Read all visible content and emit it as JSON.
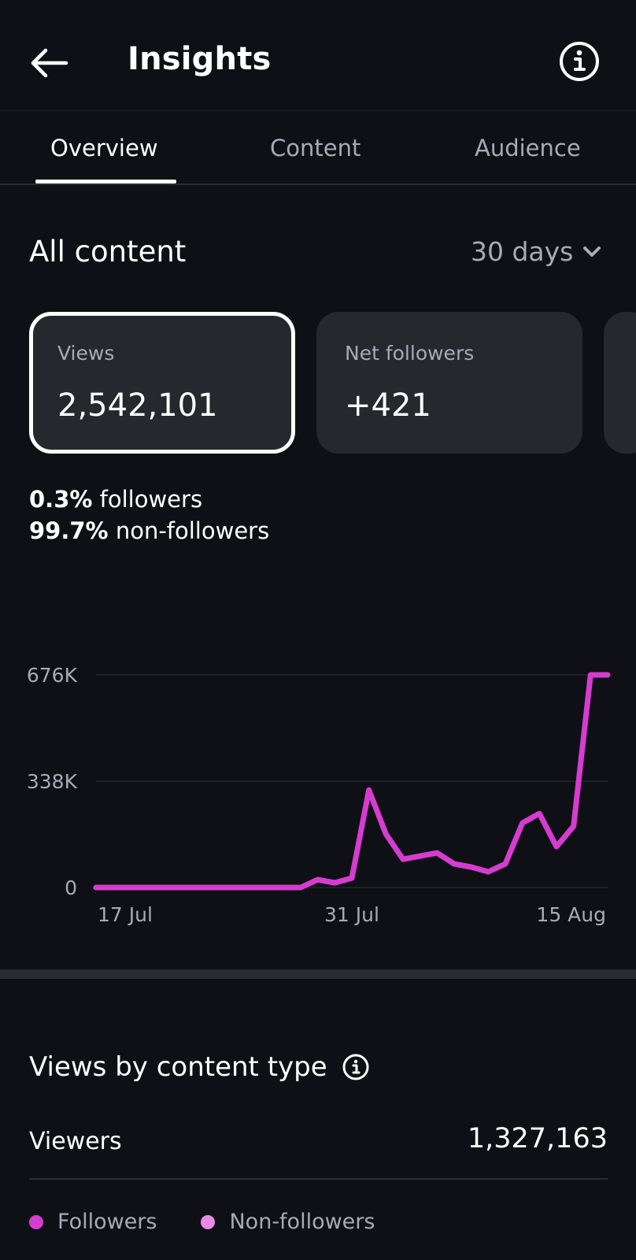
{
  "header": {
    "title": "Insights",
    "back_icon": "arrow-left-icon",
    "info_icon": "info-circle-icon"
  },
  "tabs": [
    {
      "label": "Overview",
      "active": true
    },
    {
      "label": "Content",
      "active": false
    },
    {
      "label": "Audience",
      "active": false
    }
  ],
  "section": {
    "title": "All content",
    "range_label": "30 days"
  },
  "cards": [
    {
      "label": "Views",
      "value": "2,542,101",
      "selected": true
    },
    {
      "label": "Net followers",
      "value": "+421",
      "selected": false
    }
  ],
  "split": {
    "followers_pct": "0.3%",
    "followers_label": "followers",
    "nonfollowers_pct": "99.7%",
    "nonfollowers_label": "non-followers"
  },
  "chart_data": {
    "type": "line",
    "y_ticks": [
      "676K",
      "338K",
      "0"
    ],
    "x_ticks": [
      "17 Jul",
      "31 Jul",
      "15 Aug"
    ],
    "ylim": [
      0,
      676000
    ],
    "series": [
      {
        "color": "#d63ccf",
        "x": [
          "16 Jul",
          "17 Jul",
          "18 Jul",
          "19 Jul",
          "20 Jul",
          "21 Jul",
          "22 Jul",
          "23 Jul",
          "24 Jul",
          "25 Jul",
          "26 Jul",
          "27 Jul",
          "28 Jul",
          "29 Jul",
          "30 Jul",
          "31 Jul",
          "1 Aug",
          "2 Aug",
          "3 Aug",
          "4 Aug",
          "5 Aug",
          "6 Aug",
          "7 Aug",
          "8 Aug",
          "9 Aug",
          "10 Aug",
          "11 Aug",
          "12 Aug",
          "13 Aug",
          "14 Aug",
          "15 Aug"
        ],
        "values": [
          0,
          0,
          0,
          0,
          0,
          0,
          0,
          0,
          0,
          0,
          0,
          0,
          0,
          25000,
          15000,
          30000,
          310000,
          170000,
          90000,
          100000,
          110000,
          75000,
          65000,
          50000,
          75000,
          205000,
          235000,
          130000,
          195000,
          676000,
          676000
        ]
      }
    ],
    "grid": true
  },
  "content_type": {
    "title": "Views by content type",
    "viewers_label": "Viewers",
    "viewers_value": "1,327,163",
    "legend": [
      {
        "label": "Followers",
        "color": "#d63ccf"
      },
      {
        "label": "Non-followers",
        "color": "#e88be6"
      }
    ]
  }
}
